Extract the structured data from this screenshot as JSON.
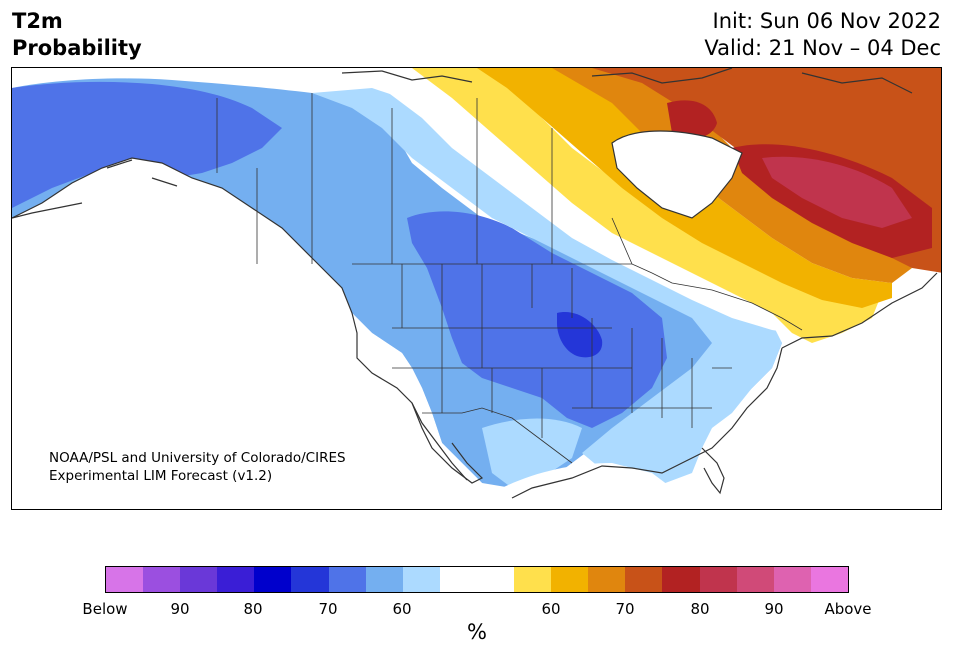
{
  "title": {
    "line1": "T2m",
    "line2": "Probability"
  },
  "dates": {
    "init": "Init: Sun 06 Nov 2022",
    "valid": "Valid: 21 Nov – 04 Dec"
  },
  "credit": {
    "line1": "NOAA/PSL and University of Colorado/CIRES",
    "line2": "Experimental LIM Forecast (v1.2)"
  },
  "colorbar": {
    "colors": [
      "#d774e8",
      "#9b4fe0",
      "#6a38d8",
      "#3a1ed6",
      "#0000cc",
      "#2436d8",
      "#4f73e8",
      "#74aff0",
      "#acdaff",
      "#ffffff",
      "#ffffff",
      "#ffe04c",
      "#f2b200",
      "#e0860e",
      "#c85218",
      "#b22222",
      "#c0344d",
      "#d04a78",
      "#de62b0",
      "#ea76e0"
    ],
    "ticks": [
      "Below",
      "90",
      "80",
      "70",
      "60",
      "60",
      "70",
      "80",
      "90",
      "Above"
    ],
    "unit": "%"
  },
  "map": {
    "color_scale": {
      "below_70": "#4f73e8",
      "below_80": "#2436d8",
      "below_60": "#74aff0",
      "below_50": "#acdaff",
      "near_normal": "#ffffff",
      "above_50": "#ffe04c",
      "above_60": "#f2b200",
      "above_70": "#e0860e",
      "above_80": "#c85218",
      "above_90": "#b22222",
      "above_95": "#c0344d"
    },
    "coastline_color": "#333333"
  }
}
